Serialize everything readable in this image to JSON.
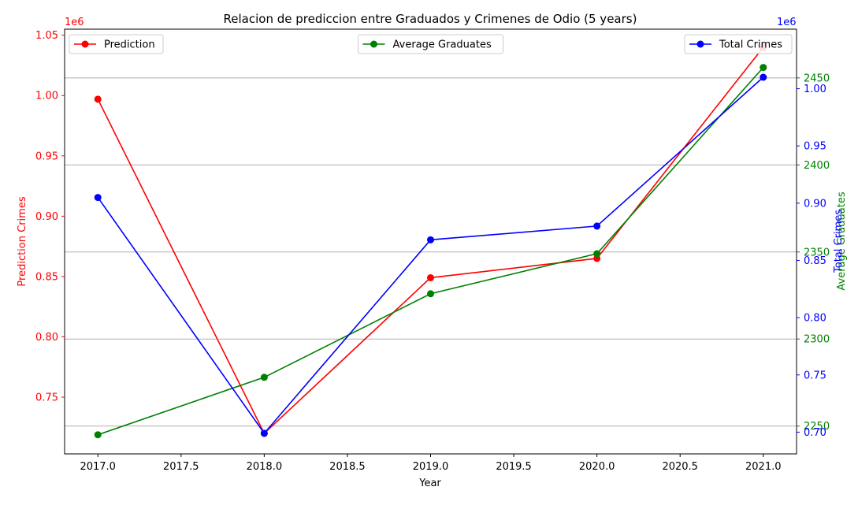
{
  "chart_data": {
    "type": "line",
    "title": "Relacion de prediccion entre Graduados y Crimenes de Odio (5 years)",
    "xlabel": "Year",
    "x": [
      2017,
      2018,
      2019,
      2020,
      2021
    ],
    "xlim": [
      2016.8,
      2021.2
    ],
    "xticks": [
      "2017.0",
      "2017.5",
      "2018.0",
      "2018.5",
      "2019.0",
      "2019.5",
      "2020.0",
      "2020.5",
      "2021.0"
    ],
    "grid": "horizontal",
    "axes": [
      {
        "side": "left",
        "label": "Prediction Crimes",
        "color": "#ff0000",
        "offset_text": "1e6",
        "ylim": [
          0.703,
          1.055
        ],
        "ticks": [
          "0.75",
          "0.80",
          "0.85",
          "0.90",
          "0.95",
          "1.00",
          "1.05"
        ]
      },
      {
        "side": "right",
        "label": "Average Graduates",
        "color": "#008000",
        "offset_text": "",
        "ylim": [
          2234,
          2478
        ],
        "ticks": [
          "2250",
          "2300",
          "2350",
          "2400",
          "2450"
        ]
      },
      {
        "side": "right",
        "label": "Total Crimes",
        "color": "#0000ff",
        "offset_text": "1e6",
        "ylim": [
          0.681,
          1.052
        ],
        "ticks": [
          "0.70",
          "0.75",
          "0.80",
          "0.85",
          "0.90",
          "0.95",
          "1.00"
        ]
      }
    ],
    "series": [
      {
        "name": "Prediction",
        "axis": 0,
        "color": "#ff0000",
        "values": [
          0.997,
          0.72,
          0.849,
          0.865,
          1.04
        ],
        "legend": "upper left"
      },
      {
        "name": "Average Graduates",
        "axis": 1,
        "color": "#008000",
        "values": [
          2245,
          2278,
          2326,
          2349,
          2456
        ],
        "legend": "upper center"
      },
      {
        "name": "Total Crimes",
        "axis": 2,
        "color": "#0000ff",
        "values": [
          0.905,
          0.699,
          0.868,
          0.88,
          1.01
        ],
        "legend": "upper right"
      }
    ]
  }
}
